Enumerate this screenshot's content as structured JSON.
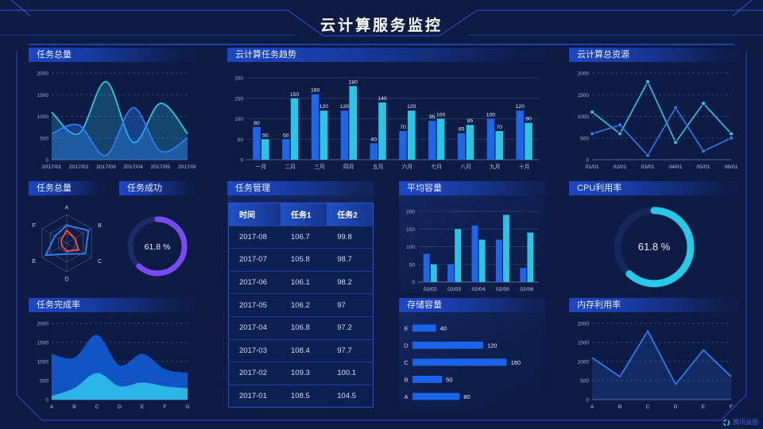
{
  "header": {
    "title": "云计算服务监控"
  },
  "logo": {
    "text": "腾讯云图"
  },
  "colors": {
    "background": "#0D1B45",
    "panel_header_blue": "#1C46C4",
    "bar_blue": "#1E66E8",
    "bar_cyan": "#27C6E6",
    "line_blue": "#2E7BF0",
    "line_cyan": "#2BC8E8",
    "donut_purple": "#7A4BF5",
    "donut_cyan": "#28C8E8",
    "radar_red": "#E8513C",
    "frame_blue": "#2B49C8",
    "frame_purple": "#5438D6"
  },
  "chart_data": [
    {
      "id": "task-total-area",
      "type": "area",
      "title": "任务总量",
      "x": [
        "2017/01",
        "2017/02",
        "2017/03",
        "2017/04",
        "2017/05",
        "2017/06"
      ],
      "series": [
        {
          "name": "cyan-series",
          "color": "#2BC8E8",
          "fill_opacity": 0.25,
          "values": [
            1100,
            600,
            1800,
            400,
            1300,
            600
          ]
        },
        {
          "name": "blue-series",
          "color": "#2E7BF0",
          "fill_opacity": 0.4,
          "values": [
            600,
            800,
            100,
            1200,
            200,
            500
          ]
        }
      ],
      "ylim": [
        0,
        2000
      ],
      "yticks": [
        0,
        500,
        1000,
        1500,
        2000
      ],
      "smooth": true,
      "grid": "dashed"
    },
    {
      "id": "cloud-task-trend",
      "type": "bar",
      "title": "云计算任务趋势",
      "categories": [
        "一月",
        "二月",
        "三月",
        "四月",
        "五月",
        "六月",
        "七月",
        "八月",
        "九月",
        "十月"
      ],
      "series": [
        {
          "name": "blue-series",
          "color": "#1E66E8",
          "values": [
            80,
            50,
            160,
            120,
            40,
            70,
            95,
            65,
            100,
            120
          ]
        },
        {
          "name": "cyan-series",
          "color": "#27C6E6",
          "values": [
            50,
            150,
            120,
            180,
            140,
            120,
            100,
            85,
            70,
            90
          ]
        }
      ],
      "ylim": [
        0,
        200
      ],
      "yticks": [
        0,
        50,
        100,
        150,
        200
      ],
      "value_labels": true
    },
    {
      "id": "cloud-resource-line",
      "type": "line",
      "title": "云计算总资源",
      "x": [
        "01/01",
        "02/01",
        "03/01",
        "04/01",
        "05/01",
        "06/01"
      ],
      "series": [
        {
          "name": "cyan-series",
          "color": "#2BC8E8",
          "values": [
            1100,
            600,
            1800,
            400,
            1300,
            600
          ]
        },
        {
          "name": "blue-series",
          "color": "#2E7BF0",
          "values": [
            600,
            800,
            100,
            1200,
            200,
            500
          ]
        }
      ],
      "ylim": [
        0,
        2000
      ],
      "yticks": [
        0,
        500,
        1000,
        1500,
        2000
      ],
      "markers": true,
      "grid": "dashed"
    },
    {
      "id": "task-radar",
      "type": "radar",
      "title": "任务总量",
      "axes": [
        "A",
        "B",
        "C",
        "D",
        "E",
        "F"
      ],
      "levels": 3,
      "series": [
        {
          "name": "blue-polygon",
          "color": "#2E7BF0",
          "values": [
            0.62,
            0.88,
            0.75,
            0.38,
            0.85,
            0.48
          ]
        },
        {
          "name": "red-polygon",
          "color": "#E8513C",
          "values": [
            0.45,
            0.33,
            0.48,
            0.28,
            0.2,
            0.22
          ]
        }
      ]
    },
    {
      "id": "task-success-donut",
      "type": "donut",
      "title": "任务成功",
      "value": 61.8,
      "label": "61.8 %",
      "color": "#7A4BF5",
      "track": "#1B2D68"
    },
    {
      "id": "task-table",
      "type": "table",
      "title": "任务管理",
      "columns": [
        "时间",
        "任务1",
        "任务2"
      ],
      "rows": [
        [
          "2017-08",
          "106.7",
          "99.8"
        ],
        [
          "2017-07",
          "105.8",
          "98.7"
        ],
        [
          "2017-06",
          "106.1",
          "98.2"
        ],
        [
          "2017-05",
          "106.2",
          "97"
        ],
        [
          "2017-04",
          "106.8",
          "97.2"
        ],
        [
          "2017-03",
          "108.4",
          "97.7"
        ],
        [
          "2017-02",
          "109.3",
          "100.1"
        ],
        [
          "2017-01",
          "108.5",
          "104.5"
        ]
      ]
    },
    {
      "id": "avg-capacity",
      "type": "bar",
      "title": "平均容量",
      "categories": [
        "02/02",
        "02/03",
        "02/04",
        "02/05",
        "02/06"
      ],
      "series": [
        {
          "name": "blue-series",
          "color": "#1E66E8",
          "values": [
            80,
            50,
            160,
            120,
            40
          ]
        },
        {
          "name": "cyan-series",
          "color": "#27C6E6",
          "values": [
            50,
            150,
            120,
            190,
            140
          ]
        }
      ],
      "ylim": [
        0,
        200
      ],
      "yticks": [
        0,
        50,
        100,
        150,
        200
      ],
      "value_labels": false
    },
    {
      "id": "cpu-donut",
      "type": "donut",
      "title": "CPU利用率",
      "value": 61.8,
      "label": "61.8 %",
      "color": "#28C8E8",
      "track": "#16295E"
    },
    {
      "id": "task-completion",
      "type": "area-stacked",
      "title": "任务完成率",
      "x": [
        "A",
        "B",
        "C",
        "D",
        "E",
        "F",
        "G"
      ],
      "series": [
        {
          "name": "blue-upper-area",
          "color": "#1159D0",
          "values": [
            1200,
            1100,
            1700,
            900,
            1200,
            800,
            700
          ]
        },
        {
          "name": "cyan-lower-area",
          "color": "#2BB5E6",
          "values": [
            100,
            300,
            700,
            350,
            450,
            350,
            300
          ]
        }
      ],
      "ylim": [
        0,
        2000
      ],
      "yticks": [
        0,
        500,
        1000,
        1500,
        2000
      ],
      "smooth": true,
      "grid": "dashed"
    },
    {
      "id": "storage-capacity",
      "type": "hbar",
      "title": "存储容量",
      "categories": [
        "E",
        "D",
        "C",
        "B",
        "A"
      ],
      "values": [
        40,
        120,
        160,
        50,
        80
      ],
      "xmax": 170,
      "color": "#1B63E8"
    },
    {
      "id": "memory-line",
      "type": "area",
      "title": "内存利用率",
      "x": [
        "A",
        "B",
        "C",
        "D",
        "E",
        "F"
      ],
      "series": [
        {
          "name": "blue-series",
          "color": "#2E7BF0",
          "fill_opacity": 0.18,
          "values": [
            1100,
            600,
            1800,
            400,
            1300,
            600
          ]
        }
      ],
      "ylim": [
        0,
        2000
      ],
      "yticks": [
        0,
        500,
        1000,
        1500,
        2000
      ],
      "smooth": false,
      "grid": "dashed"
    }
  ]
}
